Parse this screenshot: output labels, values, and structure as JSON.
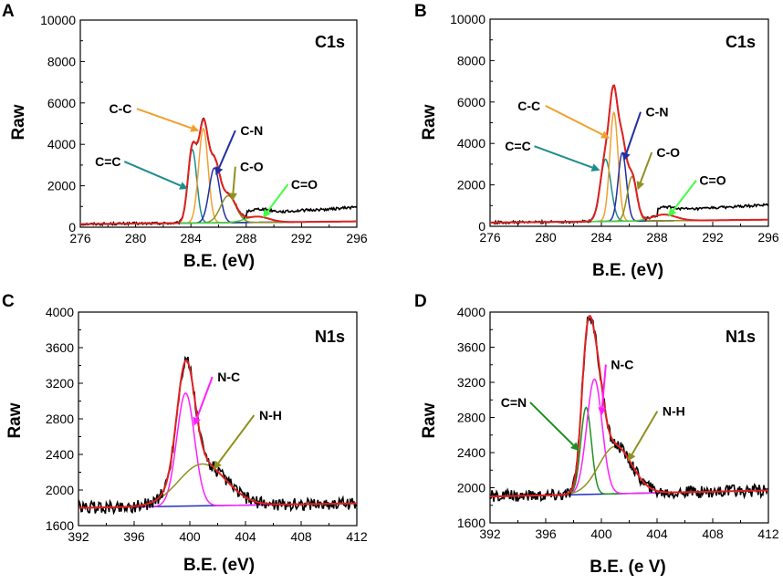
{
  "figure": {
    "panels": [
      "A",
      "B",
      "C",
      "D"
    ]
  },
  "chart_data": [
    {
      "panel": "A",
      "type": "line",
      "title": "C1s",
      "xlabel": "B.E. (eV)",
      "ylabel": "Raw",
      "xlim": [
        276,
        296
      ],
      "ylim": [
        0,
        10000
      ],
      "xticks": [
        276,
        280,
        284,
        288,
        292,
        296
      ],
      "xtick_labels": [
        "276",
        "280",
        "284",
        "288",
        "292",
        "296"
      ],
      "yticks": [
        0,
        2000,
        4000,
        6000,
        8000,
        10000
      ],
      "ytick_labels": [
        "0",
        "2000",
        "4000",
        "6000",
        "8000",
        "10000"
      ],
      "baseline": {
        "name": "Background",
        "color": "#00bcd4",
        "x": [
          276,
          296
        ],
        "y": [
          150,
          280
        ]
      },
      "raw": {
        "name": "Raw",
        "color": "#000000",
        "noise": 60,
        "tail": [
          [
            288,
            300
          ],
          [
            290,
            450
          ],
          [
            292,
            560
          ],
          [
            294,
            600
          ],
          [
            296,
            700
          ]
        ]
      },
      "envelope": {
        "name": "Envelope",
        "color": "#e02020"
      },
      "components": [
        {
          "name": "C=C",
          "center": 284.1,
          "amp": 3550,
          "fwhm": 0.75,
          "color": "#1e8c8c"
        },
        {
          "name": "C-C",
          "center": 284.9,
          "amp": 4550,
          "fwhm": 0.8,
          "color": "#f0a030"
        },
        {
          "name": "C-N",
          "center": 285.7,
          "amp": 2650,
          "fwhm": 0.9,
          "color": "#2030a0"
        },
        {
          "name": "C-O",
          "center": 286.7,
          "amp": 1300,
          "fwhm": 1.3,
          "color": "#909020"
        },
        {
          "name": "C=O",
          "center": 288.8,
          "amp": 280,
          "fwhm": 2.0,
          "color": "#40d040"
        }
      ],
      "annotations": [
        {
          "text": "C-C",
          "x": 278.9,
          "y": 5500,
          "ax": 284.6,
          "ay": 4650,
          "color": "#f0a030"
        },
        {
          "text": "C-N",
          "x": 288.4,
          "y": 4450,
          "ax": 285.8,
          "ay": 2500,
          "color": "#2030a0"
        },
        {
          "text": "C=C",
          "x": 278.0,
          "y": 2950,
          "ax": 283.8,
          "ay": 1850,
          "color": "#1e8c8c"
        },
        {
          "text": "C-O",
          "x": 288.4,
          "y": 2700,
          "ax": 287.0,
          "ay": 1250,
          "color": "#909020"
        },
        {
          "text": "C=O",
          "x": 292.2,
          "y": 1850,
          "ax": 289.2,
          "ay": 450,
          "color": "#40ff40"
        }
      ]
    },
    {
      "panel": "B",
      "type": "line",
      "title": "C1s",
      "xlabel": "B.E. (eV)",
      "ylabel": "Raw",
      "xlim": [
        276,
        296
      ],
      "ylim": [
        0,
        10000
      ],
      "xticks": [
        276,
        280,
        284,
        288,
        292,
        296
      ],
      "xtick_labels": [
        "276",
        "280",
        "284",
        "288",
        "292",
        "296"
      ],
      "yticks": [
        0,
        2000,
        4000,
        6000,
        8000,
        10000
      ],
      "ytick_labels": [
        "0",
        "2000",
        "4000",
        "6000",
        "8000",
        "10000"
      ],
      "baseline": {
        "name": "Background",
        "color": "#00bcd4",
        "x": [
          276,
          296
        ],
        "y": [
          180,
          320
        ]
      },
      "raw": {
        "name": "Raw",
        "color": "#000000",
        "noise": 60,
        "tail": [
          [
            288,
            300
          ],
          [
            290,
            500
          ],
          [
            292,
            600
          ],
          [
            294,
            650
          ],
          [
            296,
            720
          ]
        ]
      },
      "envelope": {
        "name": "Envelope",
        "color": "#e02020"
      },
      "components": [
        {
          "name": "C=C",
          "center": 284.3,
          "amp": 3000,
          "fwhm": 0.9,
          "color": "#1e8c8c"
        },
        {
          "name": "C-C",
          "center": 284.9,
          "amp": 5250,
          "fwhm": 0.7,
          "color": "#f0a030"
        },
        {
          "name": "C-N",
          "center": 285.5,
          "amp": 3300,
          "fwhm": 0.7,
          "color": "#2030a0"
        },
        {
          "name": "C-O",
          "center": 286.2,
          "amp": 2150,
          "fwhm": 0.8,
          "color": "#909020"
        },
        {
          "name": "C=O",
          "center": 288.5,
          "amp": 300,
          "fwhm": 2.0,
          "color": "#40d040"
        }
      ],
      "annotations": [
        {
          "text": "C-C",
          "x": 278.8,
          "y": 5600,
          "ax": 284.6,
          "ay": 4250,
          "color": "#f0a030"
        },
        {
          "text": "C-N",
          "x": 288.0,
          "y": 5300,
          "ax": 285.6,
          "ay": 3150,
          "color": "#2030a0"
        },
        {
          "text": "C=C",
          "x": 278.0,
          "y": 3650,
          "ax": 283.9,
          "ay": 2700,
          "color": "#1e8c8c"
        },
        {
          "text": "C-O",
          "x": 288.8,
          "y": 3350,
          "ax": 286.6,
          "ay": 1750,
          "color": "#909020"
        },
        {
          "text": "C=O",
          "x": 292.0,
          "y": 2000,
          "ax": 288.8,
          "ay": 450,
          "color": "#40ff40"
        }
      ]
    },
    {
      "panel": "C",
      "type": "line",
      "title": "N1s",
      "xlabel": "B.E. (eV)",
      "ylabel": "Raw",
      "xlim": [
        392,
        412
      ],
      "ylim": [
        1600,
        4000
      ],
      "xticks": [
        392,
        396,
        400,
        404,
        408,
        412
      ],
      "xtick_labels": [
        "392",
        "396",
        "400",
        "404",
        "408",
        "412"
      ],
      "yticks": [
        1600,
        2000,
        2400,
        2800,
        3200,
        3600,
        4000
      ],
      "ytick_labels": [
        "1600",
        "2000",
        "2400",
        "2800",
        "3200",
        "3600",
        "4000"
      ],
      "baseline": {
        "name": "Background",
        "color": "#2030c0",
        "x": [
          392,
          412
        ],
        "y": [
          1800,
          1850
        ]
      },
      "raw": {
        "name": "Raw",
        "color": "#000000",
        "noise": 70,
        "tail": []
      },
      "envelope": {
        "name": "Envelope",
        "color": "#e02020"
      },
      "components": [
        {
          "name": "N-C",
          "center": 399.7,
          "amp": 1270,
          "fwhm": 1.5,
          "color": "#ff20ff"
        },
        {
          "name": "N-H",
          "center": 400.9,
          "amp": 470,
          "fwhm": 4.0,
          "color": "#909020"
        }
      ],
      "annotations": [
        {
          "text": "N-C",
          "x": 402.8,
          "y": 3220,
          "ax": 400.3,
          "ay": 2720,
          "color": "#ff20ff"
        },
        {
          "text": "N-H",
          "x": 405.8,
          "y": 2790,
          "ax": 401.7,
          "ay": 2230,
          "color": "#909020"
        }
      ]
    },
    {
      "panel": "D",
      "type": "line",
      "title": "N1s",
      "xlabel": "B.E. (e V)",
      "ylabel": "Raw",
      "xlim": [
        392,
        412
      ],
      "ylim": [
        1600,
        4000
      ],
      "xticks": [
        392,
        396,
        400,
        404,
        408,
        412
      ],
      "xtick_labels": [
        "392",
        "396",
        "400",
        "404",
        "408",
        "412"
      ],
      "yticks": [
        1600,
        2000,
        2400,
        2800,
        3200,
        3600,
        4000
      ],
      "ytick_labels": [
        "1600",
        "2000",
        "2400",
        "2800",
        "3200",
        "3600",
        "4000"
      ],
      "baseline": {
        "name": "Background",
        "color": "#2030c0",
        "x": [
          392,
          412
        ],
        "y": [
          1900,
          1970
        ]
      },
      "raw": {
        "name": "Raw",
        "color": "#000000",
        "noise": 70,
        "tail": []
      },
      "envelope": {
        "name": "Envelope",
        "color": "#e02020"
      },
      "components": [
        {
          "name": "C=N",
          "center": 398.9,
          "amp": 990,
          "fwhm": 0.9,
          "color": "#209020"
        },
        {
          "name": "N-C",
          "center": 399.5,
          "amp": 1310,
          "fwhm": 1.3,
          "color": "#ff20ff"
        },
        {
          "name": "N-H",
          "center": 401.0,
          "amp": 540,
          "fwhm": 2.8,
          "color": "#909020"
        }
      ],
      "annotations": [
        {
          "text": "N-C",
          "x": 401.5,
          "y": 3350,
          "ax": 400.0,
          "ay": 2820,
          "color": "#ff20ff"
        },
        {
          "text": "C=N",
          "x": 393.7,
          "y": 2920,
          "ax": 398.4,
          "ay": 2420,
          "color": "#209020"
        },
        {
          "text": "N-H",
          "x": 405.2,
          "y": 2820,
          "ax": 401.9,
          "ay": 2300,
          "color": "#909020"
        }
      ]
    }
  ]
}
